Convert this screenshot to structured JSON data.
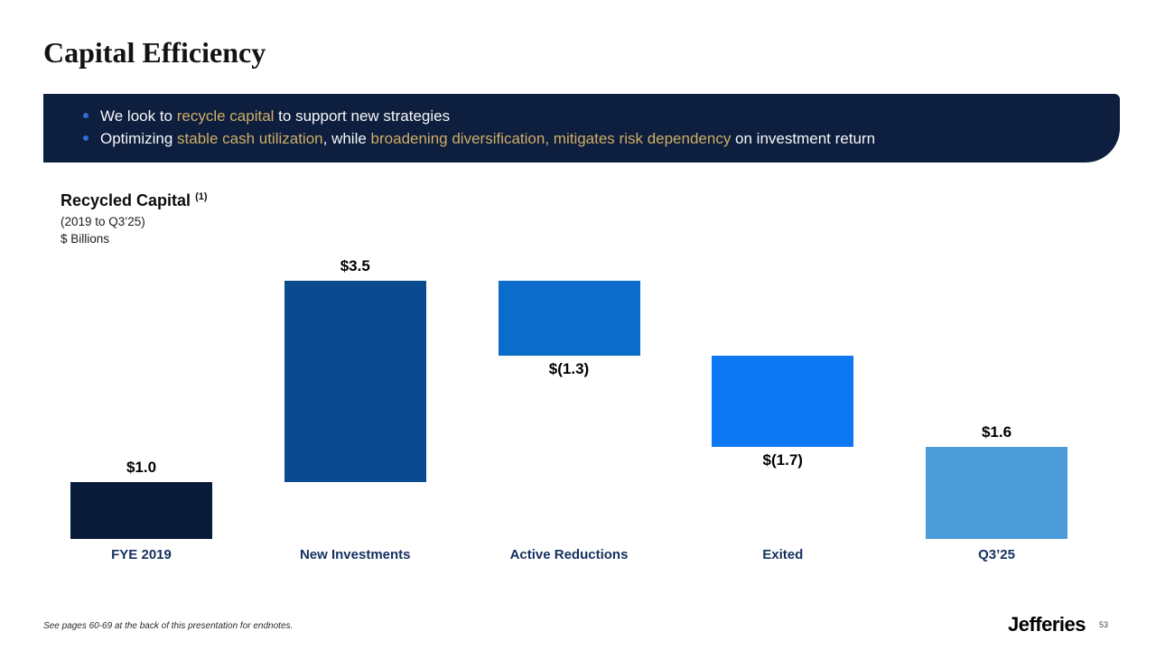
{
  "slide": {
    "title": "Capital Efficiency",
    "footnote": "See pages 60-69 at the back of this presentation for endnotes.",
    "logo_text": "Jefferies",
    "page_number": "53"
  },
  "banner": {
    "bullets": [
      {
        "segments": [
          {
            "text": "We look to ",
            "highlight": false
          },
          {
            "text": "recycle capital",
            "highlight": true
          },
          {
            "text": " to support new strategies",
            "highlight": false
          }
        ]
      },
      {
        "segments": [
          {
            "text": "Optimizing ",
            "highlight": false
          },
          {
            "text": "stable cash utilization",
            "highlight": true
          },
          {
            "text": ", while ",
            "highlight": false
          },
          {
            "text": "broadening diversification, mitigates risk dependency",
            "highlight": true
          },
          {
            "text": " on investment return",
            "highlight": false
          }
        ]
      }
    ]
  },
  "chart": {
    "title": "Recycled Capital",
    "title_note": "(1)",
    "subtitle": "(2019 to Q3’25)",
    "units": "$ Billions"
  },
  "chart_data": {
    "type": "bar",
    "subtype": "waterfall",
    "title": "Recycled Capital (2019 to Q3'25)",
    "ylabel": "$ Billions",
    "categories": [
      "FYE 2019",
      "New Investments",
      "Active Reductions",
      "Exited",
      "Q3’25"
    ],
    "values": [
      1.0,
      3.5,
      -1.3,
      -1.7,
      1.6
    ],
    "labels": [
      "$1.0",
      "$3.5",
      "$(1.3)",
      "$(1.7)",
      "$1.6"
    ],
    "label_positions": [
      "above",
      "above",
      "below",
      "below",
      "above"
    ],
    "render_ranges": [
      [
        0,
        1.0
      ],
      [
        1.0,
        4.5
      ],
      [
        4.5,
        3.2
      ],
      [
        3.2,
        1.6
      ],
      [
        0,
        1.6
      ]
    ],
    "bar_colors": [
      "#081c3a",
      "#0a4b8f",
      "#0b6dc9",
      "#0c79f3",
      "#4d9cda"
    ],
    "ylim": [
      0,
      4.7
    ],
    "grid": false,
    "axes_hidden": true,
    "legend": "none"
  },
  "colors": {
    "banner_bg": "#0d1e3e",
    "gold": "#cfae66",
    "bullet_dot": "#2e6fd6",
    "category_label": "#15305f"
  }
}
